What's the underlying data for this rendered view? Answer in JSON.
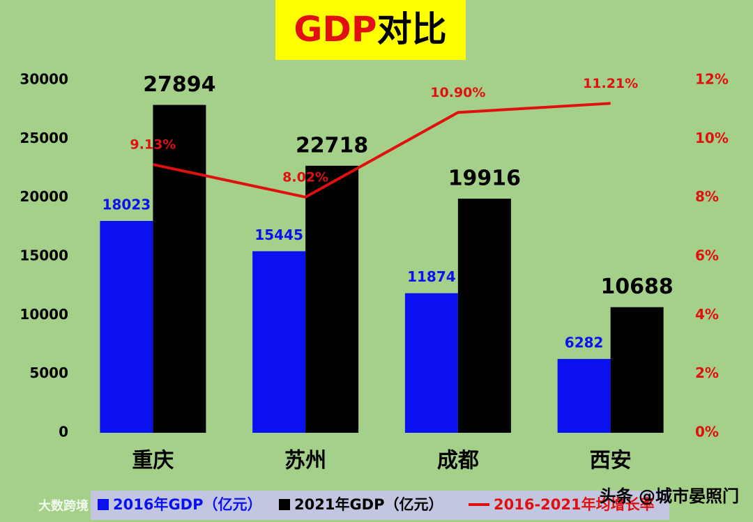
{
  "chart_data": {
    "type": "bar-line",
    "title": [
      "GDP",
      "对比"
    ],
    "categories": [
      "重庆",
      "苏州",
      "成都",
      "西安"
    ],
    "series": [
      {
        "name": "2016年GDP（亿元）",
        "color": "#0a10f0",
        "values": [
          18023,
          15445,
          11874,
          6282
        ]
      },
      {
        "name": "2021年GDP（亿元）",
        "color": "#000000",
        "values": [
          27894,
          22718,
          19916,
          10688
        ]
      },
      {
        "name": "2016-2021年均增长率",
        "color": "#e01010",
        "axis": "y2",
        "type": "line",
        "values": [
          9.13,
          8.02,
          10.9,
          11.21
        ],
        "value_labels": [
          "9.13%",
          "8.02%",
          "10.90%",
          "11.21%"
        ]
      }
    ],
    "ylim": [
      0,
      30000
    ],
    "yticks": [
      0,
      5000,
      10000,
      15000,
      20000,
      25000,
      30000
    ],
    "y2lim": [
      0,
      12
    ],
    "y2ticks": [
      {
        "value": 0,
        "label": "0%"
      },
      {
        "value": 2,
        "label": "2%"
      },
      {
        "value": 4,
        "label": "4%"
      },
      {
        "value": 6,
        "label": "6%"
      },
      {
        "value": 8,
        "label": "8%"
      },
      {
        "value": 10,
        "label": "10%"
      },
      {
        "value": 12,
        "label": "12%"
      }
    ],
    "legend": "bottom",
    "watermarks": [
      "头条 @城市晏照门",
      "大数跨境"
    ]
  }
}
